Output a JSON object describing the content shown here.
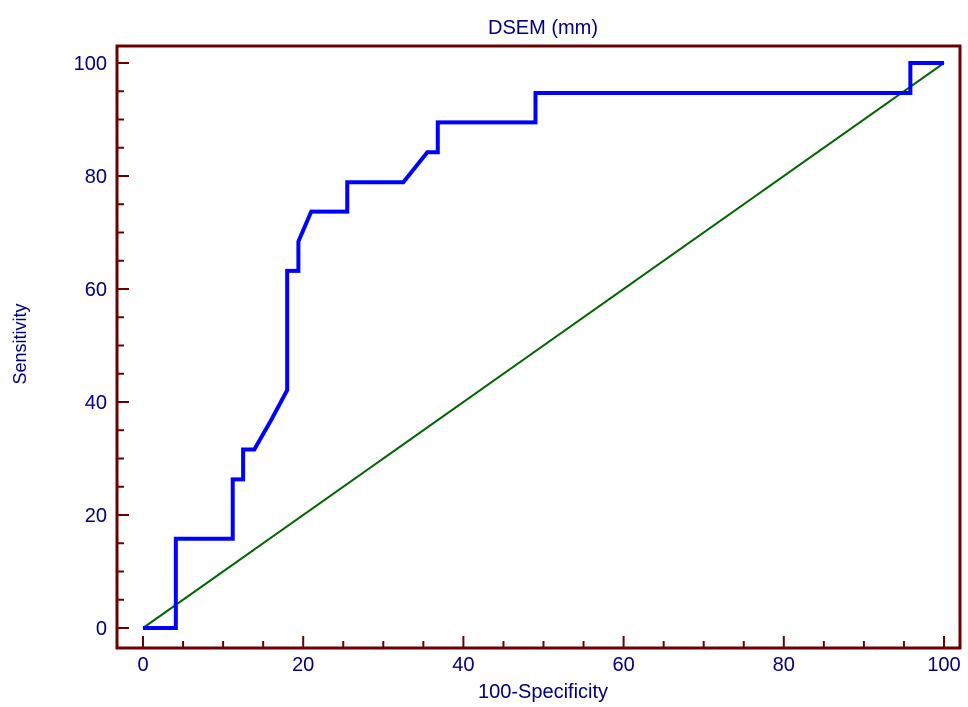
{
  "chart_data": {
    "type": "line",
    "title": "DSEM (mm)",
    "xlabel": "100-Specificity",
    "ylabel": "Sensitivity",
    "xlim": [
      0,
      100
    ],
    "ylim": [
      0,
      100
    ],
    "xticks": [
      0,
      20,
      40,
      60,
      80,
      100
    ],
    "yticks": [
      0,
      20,
      40,
      60,
      80,
      100
    ],
    "grid": false,
    "colors": {
      "frame": "#6b0000",
      "text": "#000080",
      "roc": "#0000ff",
      "reference": "#006400"
    },
    "series": [
      {
        "x": [
          0,
          4.1,
          4.1,
          11.2,
          11.2,
          12.5,
          12.5,
          13.9,
          16.0,
          18.0,
          18.0,
          19.4,
          19.4,
          21.0,
          25.5,
          25.5,
          32.5,
          35.5,
          36.8,
          36.8,
          49.0,
          49.0,
          95.8,
          95.8,
          100
        ],
        "y": [
          0,
          0,
          15.8,
          15.8,
          26.3,
          26.3,
          31.6,
          31.6,
          36.8,
          42.1,
          63.2,
          63.2,
          68.4,
          73.7,
          73.7,
          78.9,
          78.9,
          84.2,
          84.2,
          89.5,
          89.5,
          94.7,
          94.7,
          100,
          100
        ]
      },
      {
        "x": [
          0,
          100
        ],
        "y": [
          0,
          100
        ]
      }
    ]
  }
}
